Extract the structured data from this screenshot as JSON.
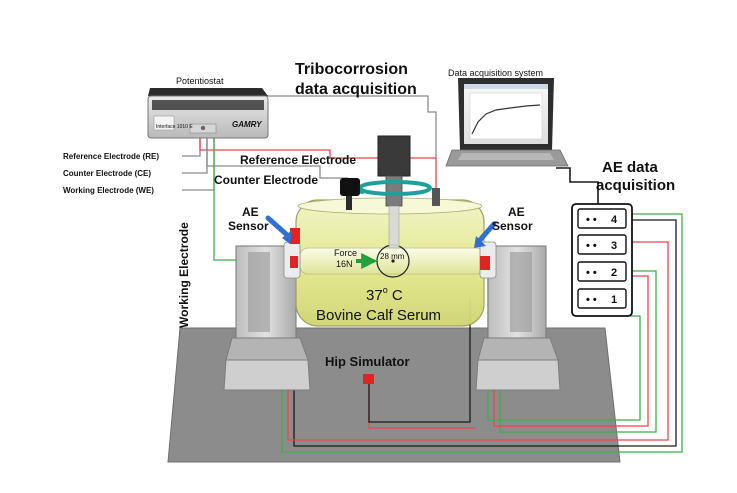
{
  "labels": {
    "potentiostat": "Potentiostat",
    "potentiostat_model": "Interface 1010 E",
    "potentiostat_brand": "GAMRY",
    "tribo_line1": "Tribocorrosion",
    "tribo_line2": "data acquisition",
    "das": "Data acquisition system",
    "ae_daq_line1": "AE data",
    "ae_daq_line2": "acquisition",
    "re_legend": "Reference Electrode (RE)",
    "ce_legend": "Counter Electrode (CE)",
    "we_legend": "Working Electrode (WE)",
    "reference_electrode": "Reference Electrode",
    "counter_electrode": "Counter Electrode",
    "working_electrode": "Working Electrode",
    "ae_sensor_left_1": "AE",
    "ae_sensor_left_2": "Sensor",
    "ae_sensor_right_1": "AE",
    "ae_sensor_right_2": "Sensor",
    "force_1": "Force",
    "force_2": "16N",
    "diameter": "28 mm",
    "temperature": "37",
    "temperature_sup": "o",
    "temperature_unit": " C",
    "serum": "Bovine Calf Serum",
    "hip_simulator": "Hip Simulator"
  },
  "channels": [
    "4",
    "3",
    "2",
    "1"
  ],
  "colors": {
    "wire_red": "#e8484c",
    "wire_green": "#3fae49",
    "wire_black": "#1a1a1a",
    "wire_gray": "#8a8a8a",
    "serum": "#eef2a0",
    "base": "#8c8c8c",
    "sensor_blue": "#2f6fd6"
  }
}
